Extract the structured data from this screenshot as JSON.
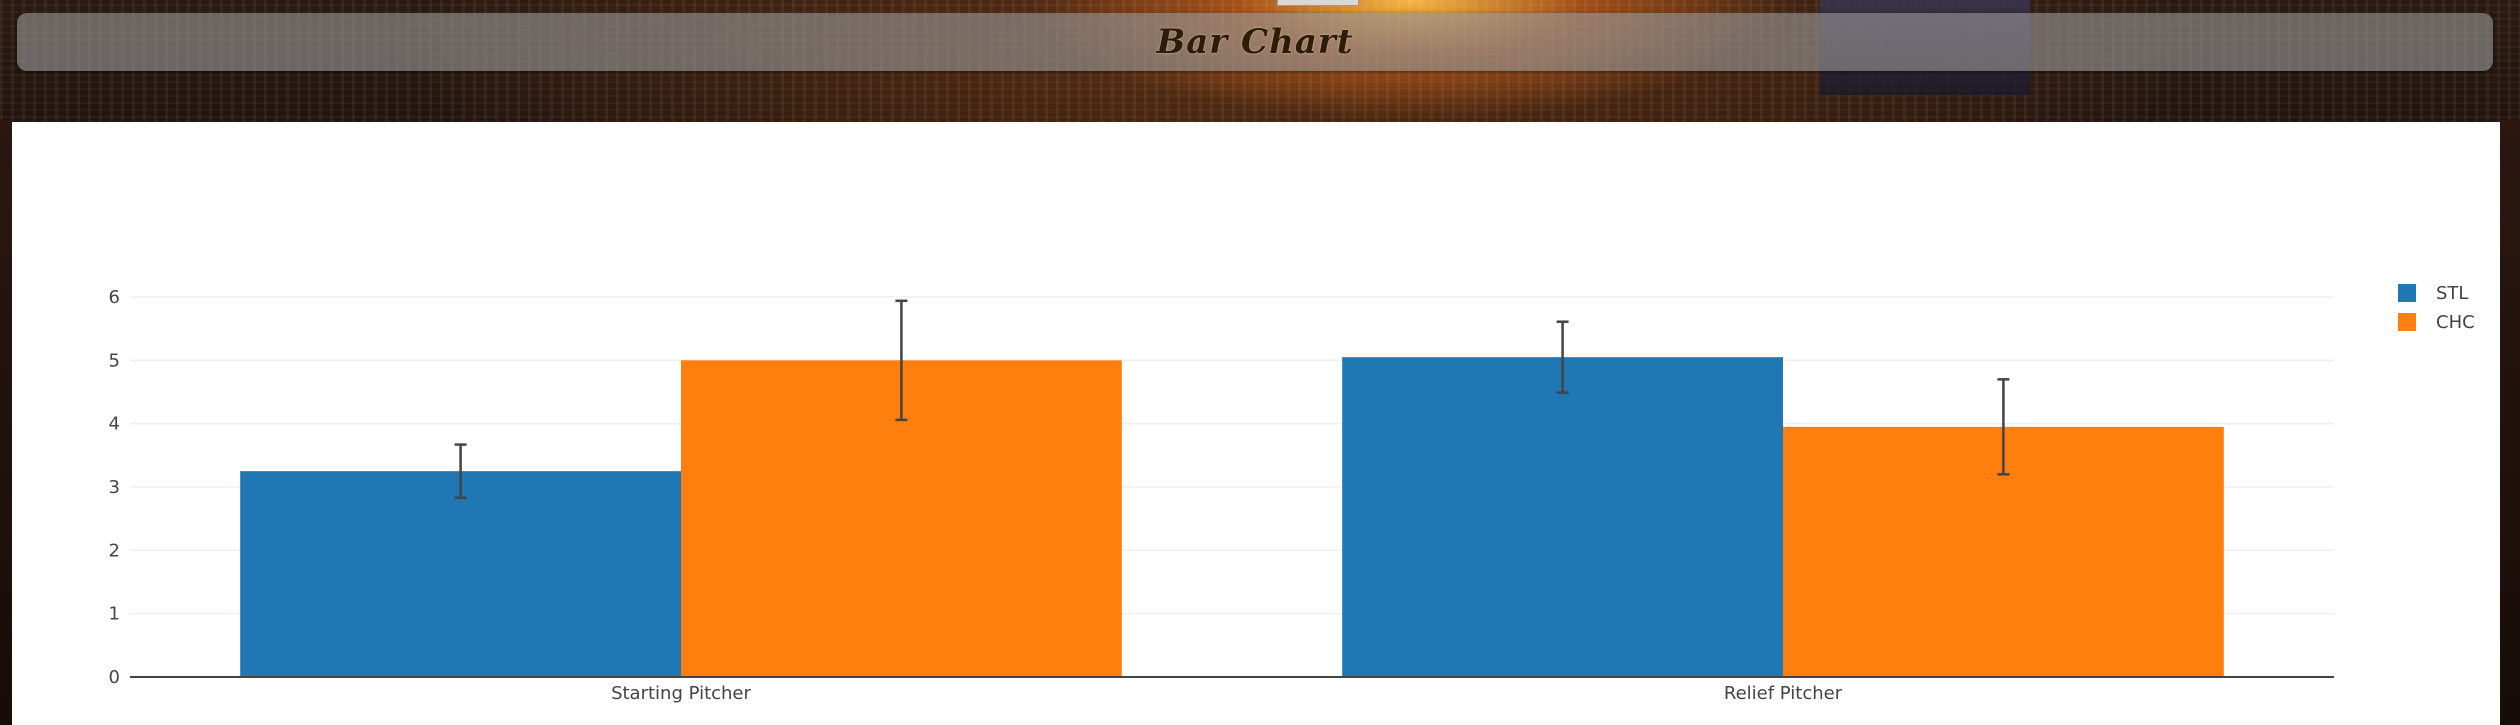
{
  "header": {
    "title": "Bar Chart"
  },
  "colors": {
    "STL": "#1f77b4",
    "CHC": "#ff7f0e",
    "grid": "#eeeeee",
    "axis": "#444444",
    "error_bar": "#444444"
  },
  "chart_data": {
    "type": "bar",
    "title": "",
    "xlabel": "",
    "ylabel": "",
    "categories": [
      "Starting Pitcher",
      "Relief Pitcher"
    ],
    "series": [
      {
        "name": "STL",
        "values": [
          3.25,
          5.05
        ],
        "error": [
          0.42,
          0.56
        ],
        "color": "#1f77b4"
      },
      {
        "name": "CHC",
        "values": [
          5.0,
          3.95
        ],
        "error": [
          0.94,
          0.75
        ],
        "color": "#ff7f0e"
      }
    ],
    "yticks": [
      "0",
      "1",
      "2",
      "3",
      "4",
      "5",
      "6"
    ],
    "ylim": [
      0,
      6.3
    ],
    "grid": true,
    "legend": "top-right",
    "barmode": "group",
    "error_bars": true
  }
}
